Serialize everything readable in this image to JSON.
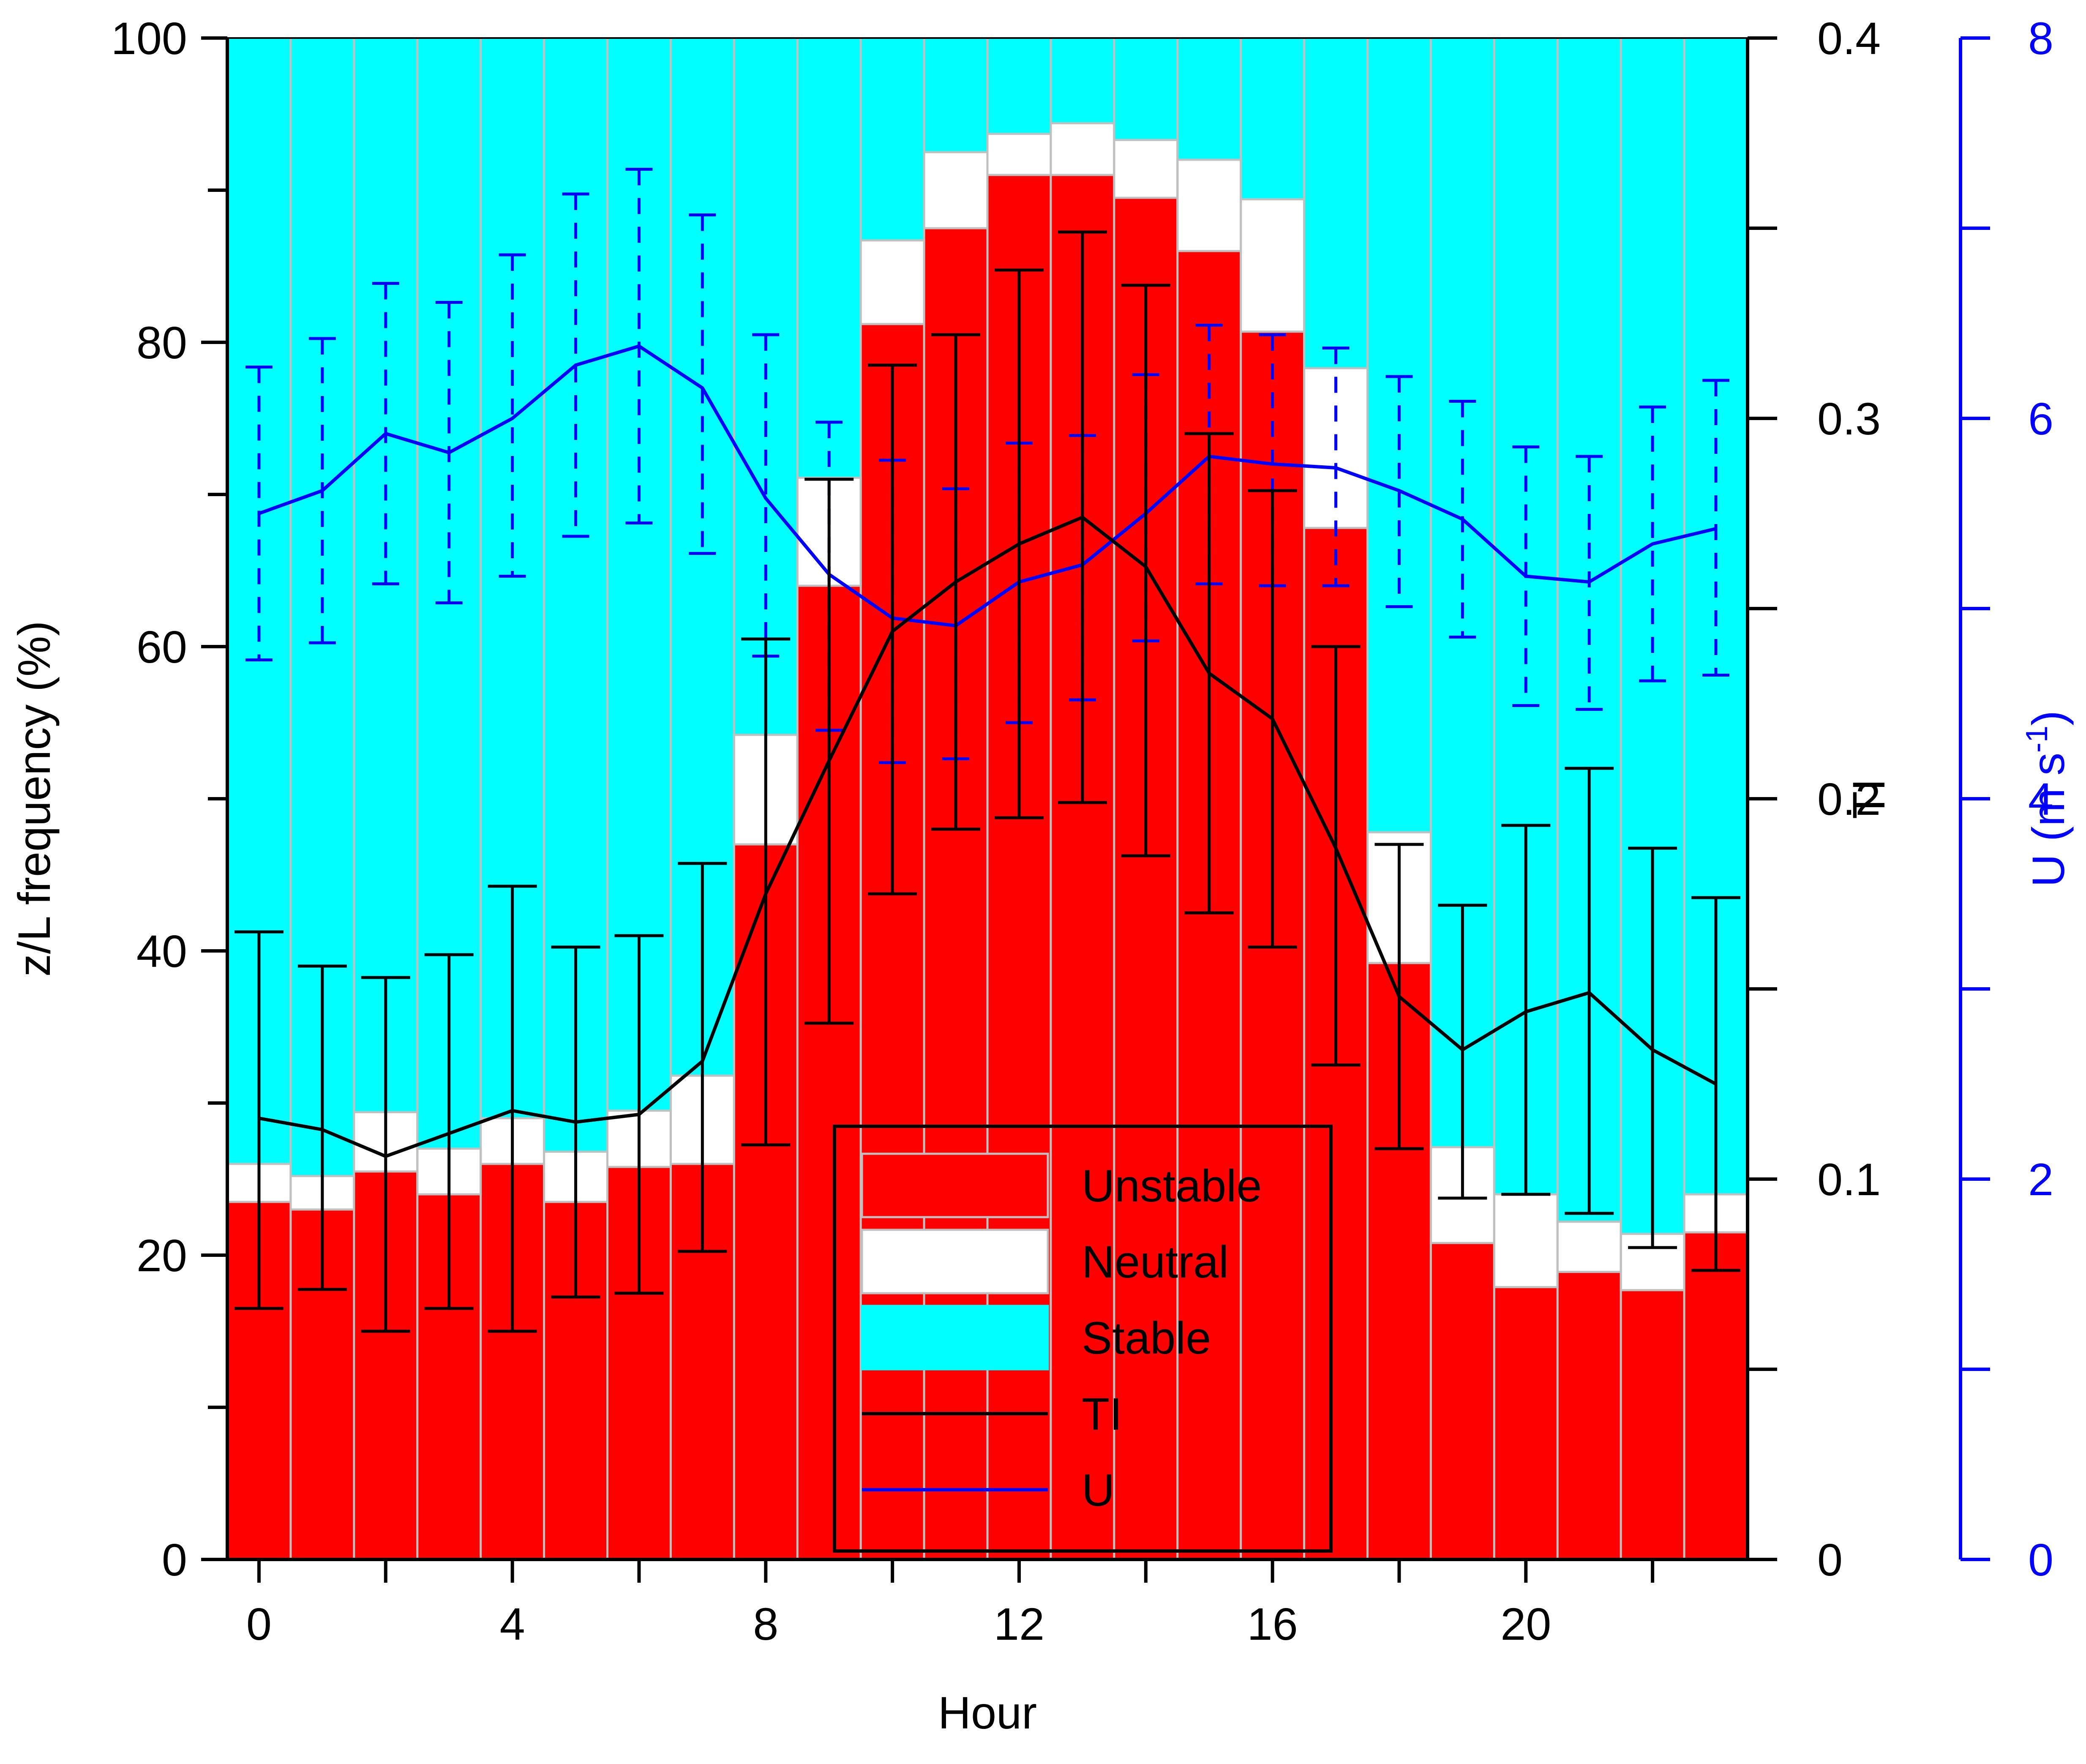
{
  "chart_data": {
    "type": "bar",
    "stacked": true,
    "x": [
      0,
      1,
      2,
      3,
      4,
      5,
      6,
      7,
      8,
      9,
      10,
      11,
      12,
      13,
      14,
      15,
      16,
      17,
      18,
      19,
      20,
      21,
      22,
      23
    ],
    "xlabel": "Hour",
    "x_ticks": [
      "0",
      "4",
      "8",
      "12",
      "16",
      "20"
    ],
    "x_tick_values": [
      0,
      4,
      8,
      12,
      16,
      20
    ],
    "ylabel": "z/L frequency (%)",
    "ylim": [
      0,
      100
    ],
    "y_ticks": [
      "0",
      "20",
      "40",
      "60",
      "80",
      "100"
    ],
    "y_tick_values": [
      0,
      20,
      40,
      60,
      80,
      100
    ],
    "y2label": "TI",
    "y2lim": [
      0,
      0.4
    ],
    "y2_ticks": [
      "0",
      "0.1",
      "0.2",
      "0.3",
      "0.4"
    ],
    "y2_tick_values": [
      0,
      0.1,
      0.2,
      0.3,
      0.4
    ],
    "y3label_main": "U (m s",
    "y3label_sup": "-1",
    "y3label_end": ")",
    "y3lim": [
      0,
      8
    ],
    "y3_ticks": [
      "0",
      "2",
      "4",
      "6",
      "8"
    ],
    "y3_tick_values": [
      0,
      2,
      4,
      6,
      8
    ],
    "series": [
      {
        "name": "Unstable",
        "color": "#ff0000",
        "values": [
          23.5,
          23.0,
          25.5,
          24.0,
          26.0,
          23.5,
          25.8,
          26.0,
          47.0,
          64.0,
          81.2,
          87.5,
          91.0,
          91.0,
          89.5,
          86.0,
          80.7,
          67.8,
          39.2,
          20.8,
          17.9,
          18.9,
          17.7,
          21.5
        ]
      },
      {
        "name": "Neutral",
        "color": "#ffffff",
        "values": [
          2.5,
          2.2,
          3.9,
          3.0,
          3.0,
          3.3,
          3.7,
          5.8,
          7.2,
          7.1,
          5.5,
          5.0,
          2.7,
          3.4,
          3.8,
          6.0,
          8.7,
          10.5,
          8.6,
          6.3,
          6.1,
          3.3,
          3.7,
          2.5
        ]
      },
      {
        "name": "Stable",
        "color": "#00ffff",
        "values": [
          74.0,
          74.8,
          70.6,
          73.0,
          71.0,
          73.2,
          70.5,
          68.2,
          45.8,
          28.9,
          13.3,
          7.5,
          6.3,
          5.6,
          6.7,
          8.0,
          10.6,
          21.7,
          52.2,
          72.9,
          76.0,
          77.8,
          78.6,
          76.0
        ]
      },
      {
        "name": "TI",
        "axis": "y2",
        "color": "#000000",
        "values": [
          0.116,
          0.113,
          0.106,
          0.112,
          0.118,
          0.115,
          0.117,
          0.131,
          0.175,
          0.21,
          0.244,
          0.257,
          0.267,
          0.274,
          0.261,
          0.233,
          0.221,
          0.187,
          0.148,
          0.134,
          0.144,
          0.149,
          0.134,
          0.125
        ],
        "err_low": [
          0.066,
          0.071,
          0.06,
          0.066,
          0.06,
          0.069,
          0.07,
          0.081,
          0.109,
          0.141,
          0.175,
          0.192,
          0.195,
          0.199,
          0.185,
          0.17,
          0.161,
          0.13,
          0.108,
          0.095,
          0.096,
          0.091,
          0.082,
          0.076
        ],
        "err_high": [
          0.165,
          0.156,
          0.153,
          0.159,
          0.177,
          0.161,
          0.164,
          0.183,
          0.242,
          0.284,
          0.314,
          0.322,
          0.339,
          0.349,
          0.335,
          0.296,
          0.281,
          0.24,
          0.188,
          0.172,
          0.193,
          0.208,
          0.187,
          0.174
        ]
      },
      {
        "name": "U",
        "axis": "y3",
        "color": "#0000ff",
        "values": [
          5.5,
          5.62,
          5.92,
          5.82,
          6.0,
          6.28,
          6.38,
          6.16,
          5.58,
          5.18,
          4.95,
          4.91,
          5.14,
          5.23,
          5.5,
          5.8,
          5.76,
          5.74,
          5.62,
          5.47,
          5.17,
          5.14,
          5.34,
          5.42
        ],
        "err_low": [
          4.73,
          4.82,
          5.13,
          5.03,
          5.17,
          5.38,
          5.45,
          5.29,
          4.75,
          4.36,
          4.19,
          4.21,
          4.4,
          4.52,
          4.83,
          5.13,
          5.12,
          5.12,
          5.01,
          4.85,
          4.49,
          4.47,
          4.62,
          4.65
        ],
        "err_high": [
          6.27,
          6.42,
          6.71,
          6.61,
          6.86,
          7.18,
          7.31,
          7.07,
          6.44,
          5.98,
          5.78,
          5.63,
          5.87,
          5.91,
          6.23,
          6.49,
          6.44,
          6.37,
          6.22,
          6.09,
          5.85,
          5.8,
          6.06,
          6.2
        ]
      }
    ],
    "legend": {
      "placement": "bottom-center",
      "entries": [
        "Unstable",
        "Neutral",
        "Stable",
        "TI",
        "U"
      ]
    },
    "colors": {
      "unstable": "#ff0000",
      "neutral": "#ffffff",
      "stable": "#00ffff",
      "ti": "#000000",
      "u": "#0000ff",
      "grid": "#c0c0c0"
    }
  }
}
